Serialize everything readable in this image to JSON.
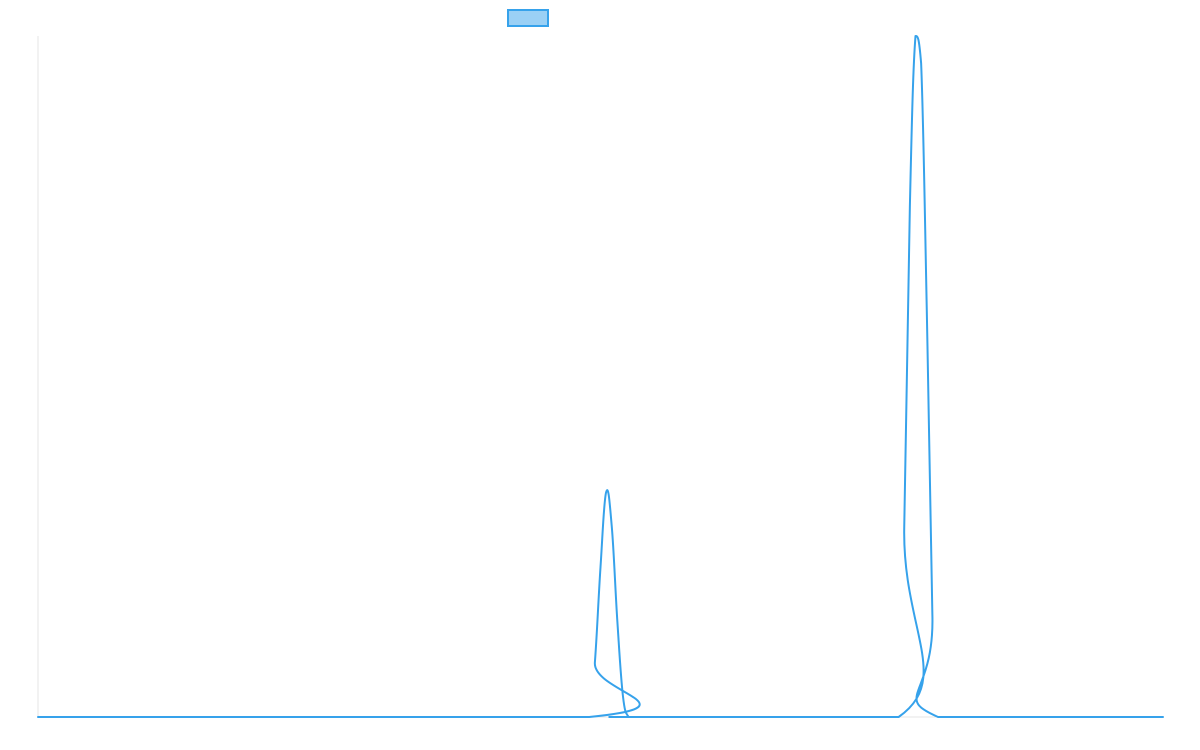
{
  "chart_data": {
    "type": "line",
    "title": "",
    "xlabel": "",
    "ylabel": "",
    "grid": false,
    "legend_position": "top-center",
    "colors": {
      "line": "#36A2EB",
      "fill": "#9AD0F5",
      "axis": "#e6e6e6"
    },
    "xlim": [
      0,
      100
    ],
    "ylim": [
      0,
      100
    ],
    "series": [
      {
        "label_visible": false,
        "x": [
          0,
          49,
          49.5,
          50,
          50.5,
          51,
          51.5,
          52,
          52.5,
          53,
          76.5,
          77,
          77.5,
          78,
          78.5,
          79,
          79.5,
          80,
          100
        ],
        "y": [
          0,
          0,
          8,
          22,
          33,
          28,
          14,
          3,
          0,
          0,
          0,
          28,
          75,
          100,
          96,
          60,
          15,
          0,
          0
        ]
      }
    ]
  }
}
